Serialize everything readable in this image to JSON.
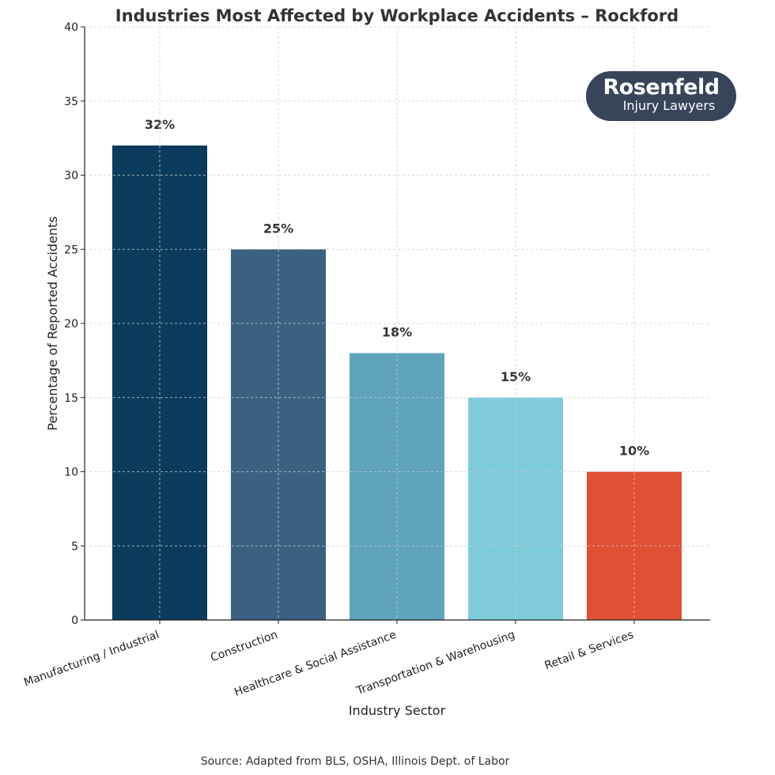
{
  "chart_data": {
    "type": "bar",
    "title": "Industries Most Affected by Workplace Accidents – Rockford",
    "xlabel": "Industry Sector",
    "ylabel": "Percentage of Reported Accidents",
    "categories": [
      "Manufacturing / Industrial",
      "Construction",
      "Healthcare & Social Assistance",
      "Transportation & Warehousing",
      "Retail & Services"
    ],
    "values": [
      32,
      25,
      18,
      15,
      10
    ],
    "data_labels": [
      "32%",
      "25%",
      "18%",
      "15%",
      "10%"
    ],
    "colors": [
      "#0b3c5d",
      "#3b6182",
      "#5fa3bd",
      "#7ecbdb",
      "#e05035"
    ],
    "ylim": [
      0,
      40
    ],
    "yticks": [
      0,
      5,
      10,
      15,
      20,
      25,
      30,
      35,
      40
    ],
    "grid": true,
    "source": "Source: Adapted from BLS, OSHA, Illinois Dept. of Labor"
  },
  "logo": {
    "line1": "Rosenfeld",
    "line2": "Injury Lawyers",
    "color": "#37445a"
  }
}
